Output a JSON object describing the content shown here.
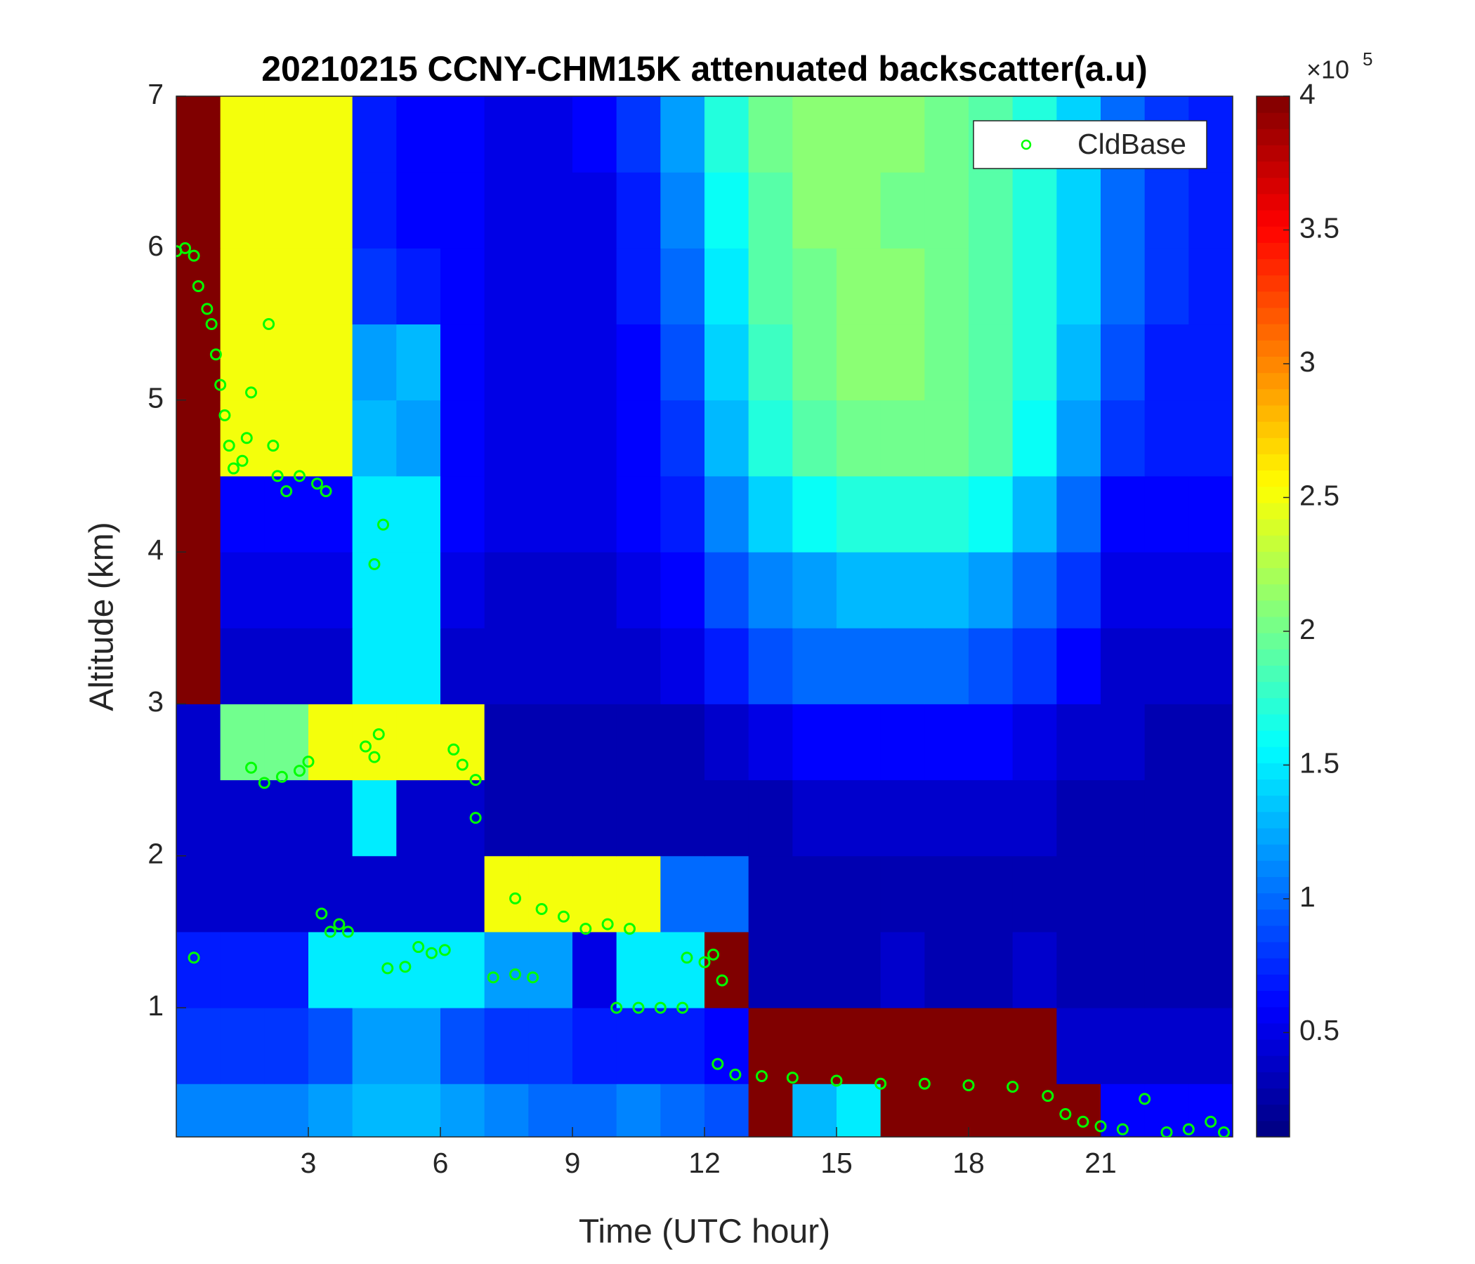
{
  "chart_data": {
    "type": "heatmap",
    "title": "20210215 CCNY-CHM15K attenuated backscatter(a.u)",
    "xlabel": "Time (UTC hour)",
    "ylabel": "Altitude (km)",
    "xlim": [
      0,
      24
    ],
    "ylim": [
      0.15,
      7
    ],
    "xticks": [
      3,
      6,
      9,
      12,
      15,
      18,
      21
    ],
    "yticks": [
      1,
      2,
      3,
      4,
      5,
      6,
      7
    ],
    "colormap": "jet",
    "clim": [
      11000,
      400000
    ],
    "cticks": [
      {
        "value": 50000,
        "label": "0.5"
      },
      {
        "value": 100000,
        "label": "1"
      },
      {
        "value": 150000,
        "label": "1.5"
      },
      {
        "value": 200000,
        "label": "2"
      },
      {
        "value": 250000,
        "label": "2.5"
      },
      {
        "value": 300000,
        "label": "3"
      },
      {
        "value": 350000,
        "label": "3.5"
      },
      {
        "value": 400000,
        "label": "4"
      }
    ],
    "cmultiplier_base": "×10",
    "cmultiplier_exp": "5",
    "x": [
      0.5,
      1.5,
      2.5,
      3.5,
      4.5,
      5.5,
      6.5,
      7.5,
      8.5,
      9.5,
      10.5,
      11.5,
      12.5,
      13.5,
      14.5,
      15.5,
      16.5,
      17.5,
      18.5,
      19.5,
      20.5,
      21.5,
      22.5,
      23.5
    ],
    "y": [
      0.25,
      0.75,
      1.25,
      1.75,
      2.25,
      2.75,
      3.25,
      3.75,
      4.25,
      4.75,
      5.25,
      5.75,
      6.25,
      6.75
    ],
    "z": [
      [
        110000,
        110000,
        110000,
        120000,
        130000,
        130000,
        120000,
        110000,
        100000,
        100000,
        110000,
        100000,
        90000,
        400000,
        130000,
        150000,
        400000,
        400000,
        400000,
        400000,
        400000,
        60000,
        60000,
        60000
      ],
      [
        80000,
        80000,
        80000,
        90000,
        120000,
        120000,
        90000,
        80000,
        80000,
        70000,
        70000,
        70000,
        60000,
        400000,
        400000,
        400000,
        400000,
        400000,
        400000,
        400000,
        40000,
        40000,
        40000,
        40000
      ],
      [
        70000,
        70000,
        70000,
        150000,
        150000,
        150000,
        150000,
        120000,
        120000,
        50000,
        150000,
        150000,
        400000,
        30000,
        30000,
        30000,
        40000,
        30000,
        30000,
        40000,
        30000,
        30000,
        30000,
        30000
      ],
      [
        40000,
        40000,
        40000,
        40000,
        40000,
        40000,
        40000,
        250000,
        250000,
        250000,
        250000,
        100000,
        100000,
        30000,
        30000,
        30000,
        30000,
        30000,
        30000,
        30000,
        30000,
        30000,
        30000,
        30000
      ],
      [
        40000,
        40000,
        40000,
        40000,
        150000,
        40000,
        40000,
        30000,
        30000,
        30000,
        30000,
        30000,
        30000,
        30000,
        40000,
        40000,
        40000,
        40000,
        40000,
        40000,
        30000,
        30000,
        30000,
        30000
      ],
      [
        40000,
        200000,
        200000,
        250000,
        250000,
        250000,
        250000,
        30000,
        30000,
        30000,
        30000,
        30000,
        40000,
        50000,
        60000,
        60000,
        60000,
        60000,
        60000,
        50000,
        40000,
        40000,
        30000,
        30000
      ],
      [
        400000,
        40000,
        40000,
        40000,
        150000,
        150000,
        40000,
        40000,
        40000,
        40000,
        40000,
        50000,
        70000,
        90000,
        100000,
        100000,
        100000,
        100000,
        90000,
        80000,
        60000,
        40000,
        40000,
        40000
      ],
      [
        400000,
        50000,
        50000,
        50000,
        150000,
        150000,
        50000,
        40000,
        40000,
        40000,
        50000,
        60000,
        90000,
        110000,
        120000,
        130000,
        130000,
        130000,
        120000,
        100000,
        80000,
        50000,
        50000,
        50000
      ],
      [
        400000,
        60000,
        60000,
        60000,
        150000,
        150000,
        60000,
        50000,
        50000,
        50000,
        60000,
        70000,
        110000,
        140000,
        160000,
        170000,
        170000,
        170000,
        160000,
        130000,
        100000,
        60000,
        60000,
        60000
      ],
      [
        400000,
        250000,
        250000,
        250000,
        130000,
        120000,
        60000,
        50000,
        50000,
        50000,
        60000,
        80000,
        130000,
        170000,
        190000,
        200000,
        200000,
        200000,
        190000,
        160000,
        120000,
        80000,
        70000,
        70000
      ],
      [
        400000,
        250000,
        250000,
        250000,
        120000,
        130000,
        60000,
        50000,
        50000,
        50000,
        60000,
        90000,
        140000,
        180000,
        200000,
        210000,
        210000,
        200000,
        190000,
        170000,
        130000,
        90000,
        70000,
        70000
      ],
      [
        400000,
        250000,
        250000,
        250000,
        80000,
        70000,
        60000,
        50000,
        50000,
        50000,
        70000,
        100000,
        150000,
        190000,
        200000,
        210000,
        210000,
        200000,
        190000,
        170000,
        140000,
        100000,
        80000,
        70000
      ],
      [
        400000,
        250000,
        250000,
        250000,
        70000,
        60000,
        60000,
        50000,
        50000,
        50000,
        70000,
        110000,
        160000,
        190000,
        210000,
        210000,
        200000,
        200000,
        190000,
        170000,
        140000,
        100000,
        80000,
        70000
      ],
      [
        400000,
        250000,
        250000,
        250000,
        70000,
        60000,
        60000,
        50000,
        50000,
        60000,
        80000,
        120000,
        170000,
        200000,
        210000,
        210000,
        210000,
        200000,
        190000,
        170000,
        140000,
        100000,
        80000,
        70000
      ]
    ],
    "scatter": {
      "name": "CldBase",
      "color": "#00ff00",
      "x": [
        0.0,
        0.2,
        0.4,
        0.5,
        0.7,
        0.8,
        0.9,
        1.0,
        1.1,
        1.2,
        1.3,
        1.5,
        1.6,
        1.7,
        2.1,
        2.2,
        2.3,
        2.5,
        2.8,
        3.2,
        3.4,
        4.5,
        4.7,
        0.4,
        1.7,
        2.0,
        2.4,
        2.8,
        3.0,
        3.3,
        3.5,
        3.7,
        3.9,
        4.3,
        4.6,
        4.5,
        4.8,
        5.2,
        5.5,
        5.8,
        6.1,
        6.3,
        6.5,
        6.8,
        6.8,
        7.2,
        7.7,
        8.1,
        7.7,
        8.3,
        8.8,
        9.3,
        9.8,
        10.3,
        10.0,
        10.5,
        11.0,
        11.5,
        11.6,
        12.0,
        12.2,
        12.4,
        12.3,
        12.7,
        13.3,
        14.0,
        15.0,
        16.0,
        17.0,
        18.0,
        19.0,
        19.8,
        20.2,
        20.6,
        21.0,
        21.5,
        22.0,
        22.5,
        23.0,
        23.5,
        23.8
      ],
      "y": [
        5.98,
        6.0,
        5.95,
        5.75,
        5.6,
        5.5,
        5.3,
        5.1,
        4.9,
        4.7,
        4.55,
        4.6,
        4.75,
        5.05,
        5.5,
        4.7,
        4.5,
        4.4,
        4.5,
        4.45,
        4.4,
        3.92,
        4.18,
        1.33,
        2.58,
        2.48,
        2.52,
        2.56,
        2.62,
        1.62,
        1.5,
        1.55,
        1.5,
        2.72,
        2.8,
        2.65,
        1.26,
        1.27,
        1.4,
        1.36,
        1.38,
        2.7,
        2.6,
        2.5,
        2.25,
        1.2,
        1.22,
        1.2,
        1.72,
        1.65,
        1.6,
        1.52,
        1.55,
        1.52,
        1.0,
        1.0,
        1.0,
        1.0,
        1.33,
        1.3,
        1.35,
        1.18,
        0.63,
        0.56,
        0.55,
        0.54,
        0.52,
        0.5,
        0.5,
        0.49,
        0.48,
        0.42,
        0.3,
        0.25,
        0.22,
        0.2,
        0.4,
        0.18,
        0.2,
        0.25,
        0.18
      ]
    },
    "legend_position": "upper right"
  }
}
